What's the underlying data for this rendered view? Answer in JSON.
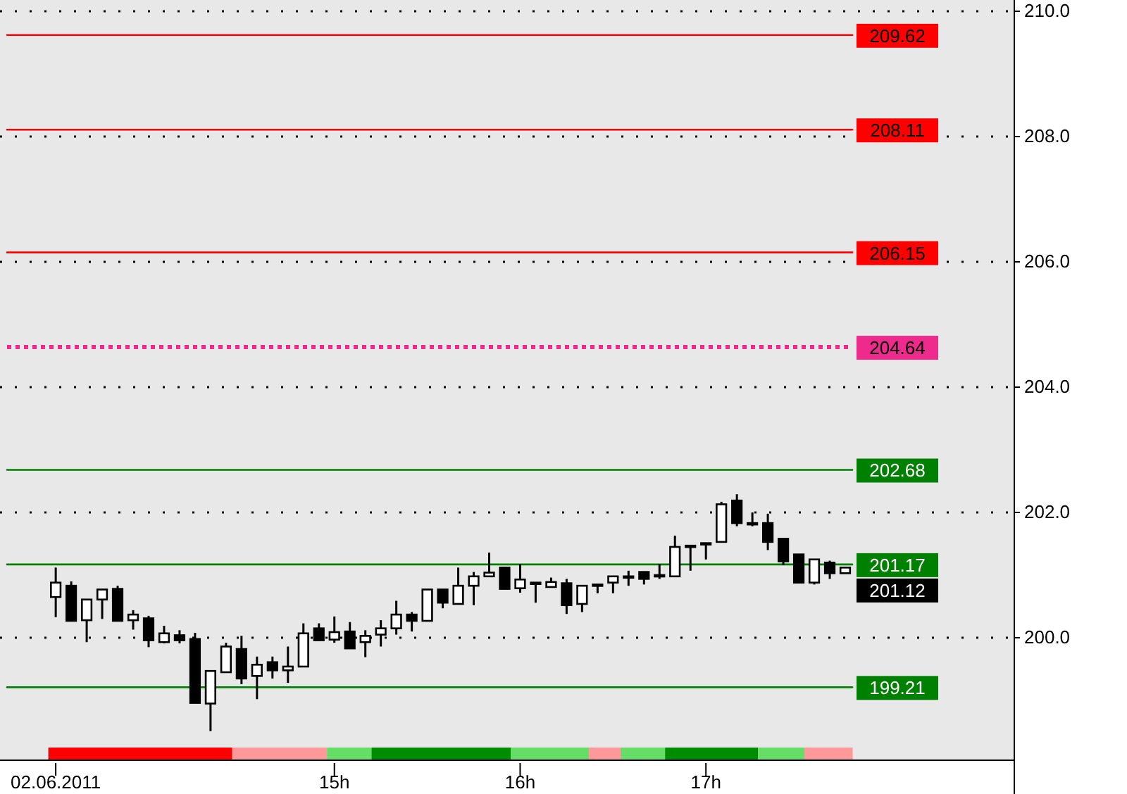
{
  "chart_data": {
    "type": "candlestick",
    "x": [
      13.5,
      13.5833,
      13.6667,
      13.75,
      13.8333,
      13.9167,
      14,
      14.0833,
      14.1667,
      14.25,
      14.3333,
      14.4167,
      14.5,
      14.5833,
      14.6667,
      14.75,
      14.8333,
      14.9167,
      15,
      15.0833,
      15.1667,
      15.25,
      15.3333,
      15.4167,
      15.5,
      15.5833,
      15.6667,
      15.75,
      15.8333,
      15.9167,
      16,
      16.0833,
      16.1667,
      16.25,
      16.3333,
      16.4167,
      16.5,
      16.5833,
      16.6667,
      16.75,
      16.8333,
      16.9167,
      17,
      17.0833,
      17.1667,
      17.25,
      17.3333,
      17.4167,
      17.5,
      17.5833,
      17.6667,
      17.75
    ],
    "ohlc": [
      [
        200.65,
        201.12,
        200.33,
        200.88
      ],
      [
        200.83,
        200.9,
        200.27,
        200.27
      ],
      [
        200.28,
        200.61,
        199.93,
        200.61
      ],
      [
        200.61,
        200.77,
        200.3,
        200.77
      ],
      [
        200.78,
        200.83,
        200.27,
        200.27
      ],
      [
        200.28,
        200.44,
        200.13,
        200.37
      ],
      [
        200.31,
        200.35,
        199.85,
        199.96
      ],
      [
        199.93,
        200.19,
        199.91,
        200.07
      ],
      [
        200.04,
        200.12,
        199.91,
        199.96
      ],
      [
        199.98,
        200.08,
        198.96,
        198.96
      ],
      [
        198.95,
        199.47,
        198.51,
        199.47
      ],
      [
        199.45,
        199.92,
        199.45,
        199.86
      ],
      [
        199.82,
        200.03,
        199.26,
        199.35
      ],
      [
        199.39,
        199.7,
        199.02,
        199.57
      ],
      [
        199.61,
        199.7,
        199.35,
        199.48
      ],
      [
        199.48,
        199.86,
        199.28,
        199.54
      ],
      [
        199.54,
        200.23,
        199.54,
        200.07
      ],
      [
        200.15,
        200.23,
        199.96,
        199.96
      ],
      [
        199.97,
        200.34,
        199.92,
        200.09
      ],
      [
        200.1,
        200.25,
        199.83,
        199.83
      ],
      [
        199.93,
        200.12,
        199.69,
        200.03
      ],
      [
        200.05,
        200.28,
        199.86,
        200.15
      ],
      [
        200.15,
        200.59,
        200.05,
        200.37
      ],
      [
        200.37,
        200.41,
        200.1,
        200.27
      ],
      [
        200.27,
        200.77,
        200.27,
        200.77
      ],
      [
        200.77,
        200.77,
        200.47,
        200.56
      ],
      [
        200.54,
        201.12,
        200.54,
        200.83
      ],
      [
        200.83,
        201.05,
        200.52,
        200.98
      ],
      [
        200.98,
        201.36,
        200.98,
        201.04
      ],
      [
        201.12,
        201.12,
        200.78,
        200.78
      ],
      [
        200.79,
        201.18,
        200.72,
        200.93
      ],
      [
        200.88,
        200.88,
        200.56,
        200.88
      ],
      [
        200.81,
        200.96,
        200.81,
        200.89
      ],
      [
        200.87,
        200.94,
        200.38,
        200.52
      ],
      [
        200.54,
        200.83,
        200.41,
        200.83
      ],
      [
        200.85,
        200.85,
        200.71,
        200.85
      ],
      [
        200.88,
        200.98,
        200.71,
        200.98
      ],
      [
        200.98,
        201.07,
        200.83,
        200.98
      ],
      [
        201.05,
        201.05,
        200.85,
        200.94
      ],
      [
        201.0,
        201.18,
        200.94,
        201.0
      ],
      [
        200.98,
        201.63,
        200.98,
        201.45
      ],
      [
        201.47,
        201.47,
        201.07,
        201.47
      ],
      [
        201.51,
        201.51,
        201.25,
        201.51
      ],
      [
        201.53,
        202.17,
        201.53,
        202.13
      ],
      [
        202.19,
        202.29,
        201.78,
        201.83
      ],
      [
        201.83,
        202.0,
        201.78,
        201.83
      ],
      [
        201.83,
        201.98,
        201.4,
        201.53
      ],
      [
        201.58,
        201.58,
        201.16,
        201.22
      ],
      [
        201.33,
        201.33,
        200.88,
        200.88
      ],
      [
        200.88,
        201.25,
        200.85,
        201.25
      ],
      [
        201.2,
        201.23,
        200.94,
        201.03
      ],
      [
        201.03,
        201.12,
        201.03,
        201.12
      ]
    ],
    "xlim": [
      13.2,
      18.66
    ],
    "xticks": [
      {
        "value": 13.5,
        "label": "02.06.2011"
      },
      {
        "value": 15,
        "label": "15h"
      },
      {
        "value": 16,
        "label": "16h"
      },
      {
        "value": 17,
        "label": "17h"
      }
    ],
    "ylim": [
      198.27,
      210.0
    ],
    "yticks": [
      {
        "value": 200,
        "label": "200.0"
      },
      {
        "value": 202,
        "label": "202.0"
      },
      {
        "value": 204,
        "label": "204.0"
      },
      {
        "value": 206,
        "label": "206.0"
      },
      {
        "value": 208,
        "label": "208.0"
      },
      {
        "value": 210,
        "label": "210.0"
      }
    ],
    "grid": "y",
    "ref_lines": [
      {
        "axis": "y",
        "value": 209.62,
        "label": "209.62",
        "color": "#ff0000"
      },
      {
        "axis": "y",
        "value": 208.11,
        "label": "208.11",
        "color": "#ff0000"
      },
      {
        "axis": "y",
        "value": 206.15,
        "label": "206.15",
        "color": "#ff0000"
      },
      {
        "axis": "y",
        "value": 204.64,
        "label": "204.64",
        "color": "#ee2b8c",
        "line_style": "dotted"
      },
      {
        "axis": "y",
        "value": 202.68,
        "label": "202.68",
        "color": "#008000"
      },
      {
        "axis": "y",
        "value": 201.17,
        "label": "201.17",
        "color": "#008000"
      },
      {
        "axis": "y",
        "value": 199.21,
        "label": "199.21",
        "color": "#008000"
      }
    ],
    "annotations": [
      "201.12"
    ]
  }
}
